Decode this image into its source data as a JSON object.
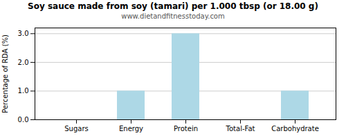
{
  "chart_data": {
    "type": "bar",
    "title": "Soy sauce made from soy (tamari) per 1.000 tbsp (or 18.00 g)",
    "subtitle": "www.dietandfitnesstoday.com",
    "categories": [
      "Sugars",
      "Energy",
      "Protein",
      "Total-Fat",
      "Carbohydrate"
    ],
    "values": [
      0.0,
      1.0,
      3.0,
      0.0,
      1.0
    ],
    "color": "#add8e6",
    "ylabel": "Percentage of RDA (%)",
    "ylim": [
      0,
      3.2
    ],
    "yticks": [
      {
        "value": 0.0,
        "label": "0.0"
      },
      {
        "value": 1.0,
        "label": "1.0"
      },
      {
        "value": 2.0,
        "label": "2.0"
      },
      {
        "value": 3.0,
        "label": "3.0"
      }
    ],
    "grid": true
  }
}
